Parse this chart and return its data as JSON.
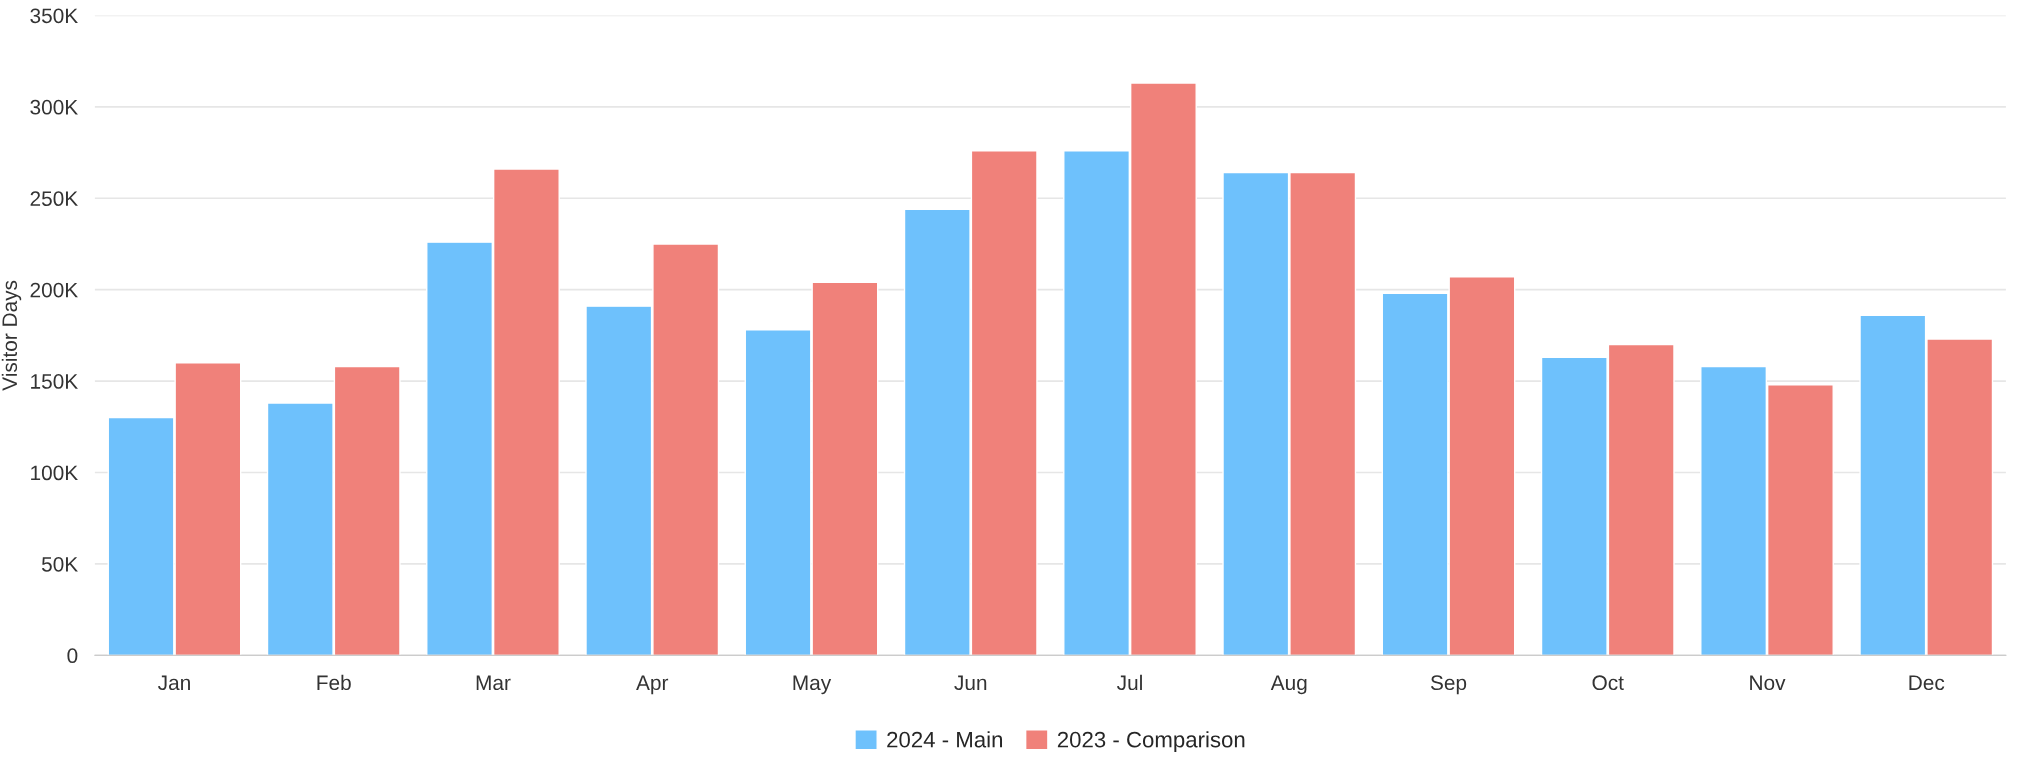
{
  "chart_data": {
    "type": "bar",
    "ylabel": "Visitor Days",
    "categories": [
      "Jan",
      "Feb",
      "Mar",
      "Apr",
      "May",
      "Jun",
      "Jul",
      "Aug",
      "Sep",
      "Oct",
      "Nov",
      "Dec"
    ],
    "series": [
      {
        "name": "2024 - Main",
        "color": "#6ec1fc",
        "values": [
          130000,
          138000,
          226000,
          191000,
          178000,
          244000,
          276000,
          264000,
          198000,
          163000,
          158000,
          186000
        ]
      },
      {
        "name": "2023 - Comparison",
        "color": "#f0817a",
        "values": [
          160000,
          158000,
          266000,
          225000,
          204000,
          276000,
          313000,
          264000,
          207000,
          170000,
          148000,
          173000
        ]
      }
    ],
    "ylim": [
      0,
      350000
    ],
    "yticks": [
      {
        "value": 0,
        "label": "0"
      },
      {
        "value": 50000,
        "label": "50K"
      },
      {
        "value": 100000,
        "label": "100K"
      },
      {
        "value": 150000,
        "label": "150K"
      },
      {
        "value": 200000,
        "label": "200K"
      },
      {
        "value": 250000,
        "label": "250K"
      },
      {
        "value": 300000,
        "label": "300K"
      },
      {
        "value": 350000,
        "label": "350K"
      }
    ],
    "grid": "y",
    "legend": "bottom"
  }
}
